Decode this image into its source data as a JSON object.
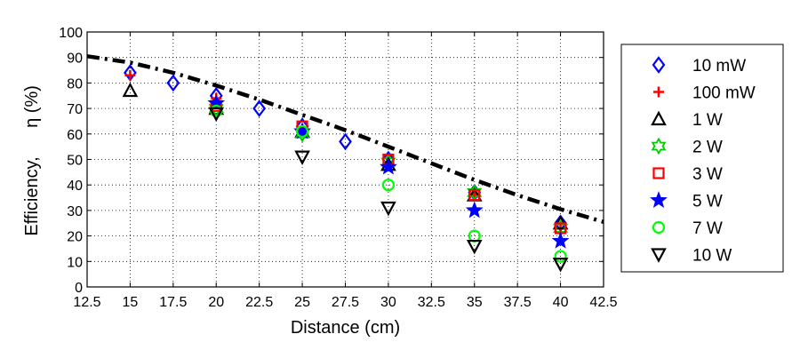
{
  "chart_data": {
    "type": "scatter",
    "title": "",
    "xlabel": "Distance (cm)",
    "ylabel_parts": [
      "Efficiency,",
      "η (%)"
    ],
    "xlim": [
      12.5,
      42.5
    ],
    "ylim": [
      0,
      100
    ],
    "xticks": [
      12.5,
      15,
      17.5,
      20,
      22.5,
      25,
      27.5,
      30,
      32.5,
      35,
      37.5,
      40,
      42.5
    ],
    "yticks": [
      0,
      10,
      20,
      30,
      40,
      50,
      60,
      70,
      80,
      90,
      100
    ],
    "grid": true,
    "legend_position": "outside-right",
    "series": [
      {
        "name": "10 mW",
        "marker": "diamond",
        "color": "#0000ff",
        "points": [
          [
            15,
            84
          ],
          [
            17.5,
            80
          ],
          [
            20,
            75
          ],
          [
            22.5,
            70
          ],
          [
            25,
            63
          ],
          [
            27.5,
            57
          ],
          [
            30,
            50
          ],
          [
            35,
            37
          ],
          [
            40,
            25
          ]
        ]
      },
      {
        "name": "100 mW",
        "marker": "plus",
        "color": "#ff0000",
        "points": [
          [
            15,
            83
          ],
          [
            20,
            74
          ],
          [
            25,
            62
          ],
          [
            30,
            49
          ],
          [
            35,
            36
          ],
          [
            40,
            23
          ]
        ]
      },
      {
        "name": "1 W",
        "marker": "triangle-up",
        "color": "#000000",
        "points": [
          [
            15,
            77
          ],
          [
            20,
            70
          ],
          [
            25,
            61
          ],
          [
            30,
            48
          ],
          [
            35,
            36
          ],
          [
            40,
            25
          ]
        ]
      },
      {
        "name": "2 W",
        "marker": "hexagram",
        "color": "#00cc00",
        "points": [
          [
            20,
            70
          ],
          [
            25,
            60
          ],
          [
            30,
            49
          ],
          [
            35,
            37
          ],
          [
            40,
            23
          ]
        ]
      },
      {
        "name": "3 W",
        "marker": "square",
        "color": "#ff0000",
        "points": [
          [
            20,
            71
          ],
          [
            25,
            63
          ],
          [
            30,
            50
          ],
          [
            35,
            36
          ],
          [
            40,
            23
          ]
        ]
      },
      {
        "name": "5 W",
        "marker": "pentagram",
        "color": "#0000ff",
        "points": [
          [
            20,
            72
          ],
          [
            25,
            61
          ],
          [
            30,
            47
          ],
          [
            35,
            30
          ],
          [
            40,
            18
          ]
        ]
      },
      {
        "name": "7 W",
        "marker": "circle",
        "color": "#00ff00",
        "points": [
          [
            20,
            69
          ],
          [
            25,
            61
          ],
          [
            30,
            40
          ],
          [
            35,
            20
          ],
          [
            40,
            12
          ]
        ]
      },
      {
        "name": "10 W",
        "marker": "triangle-down",
        "color": "#000000",
        "points": [
          [
            20,
            68
          ],
          [
            25,
            51
          ],
          [
            30,
            31
          ],
          [
            35,
            16
          ],
          [
            40,
            9
          ]
        ]
      }
    ],
    "reference_line": {
      "style": "dash-dot",
      "color": "#000000",
      "points": [
        [
          12.5,
          90.5
        ],
        [
          15,
          88
        ],
        [
          17.5,
          84
        ],
        [
          20,
          79
        ],
        [
          22.5,
          73.5
        ],
        [
          25,
          67.5
        ],
        [
          27.5,
          61.5
        ],
        [
          30,
          55
        ],
        [
          32.5,
          48.5
        ],
        [
          35,
          42
        ],
        [
          37.5,
          36
        ],
        [
          40,
          30.5
        ],
        [
          42.5,
          25.5
        ]
      ]
    }
  }
}
